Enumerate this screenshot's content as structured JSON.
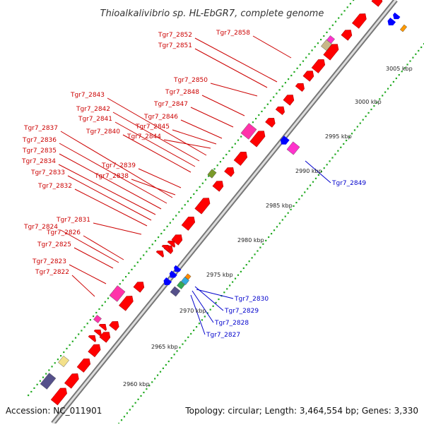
{
  "title": "Thioalkalivibrio sp. HL-EbGR7, complete genome",
  "footer": {
    "accession": "Accession: NC_011901",
    "summary": "Topology: circular; Length: 3,464,554 bp; Genes: 3,330"
  },
  "kbp_ticks": [
    "2960 kbp",
    "2965 kbp",
    "2970 kbp",
    "2975 kbp",
    "2980 kbp",
    "2985 kbp",
    "2990 kbp",
    "2995 kbp",
    "3000 kbp",
    "3005 kbp"
  ],
  "gene_labels_left": [
    "Tgr7_2822",
    "Tgr7_2823",
    "Tgr7_2824",
    "Tgr7_2825",
    "Tgr7_2826",
    "Tgr7_2831",
    "Tgr7_2832",
    "Tgr7_2833",
    "Tgr7_2834",
    "Tgr7_2835",
    "Tgr7_2836",
    "Tgr7_2837",
    "Tgr7_2838",
    "Tgr7_2839",
    "Tgr7_2840",
    "Tgr7_2841",
    "Tgr7_2842",
    "Tgr7_2843",
    "Tgr7_2844",
    "Tgr7_2845",
    "Tgr7_2846",
    "Tgr7_2847",
    "Tgr7_2848",
    "Tgr7_2850",
    "Tgr7_2851",
    "Tgr7_2852",
    "Tgr7_2858"
  ],
  "gene_labels_right": [
    "Tgr7_2827",
    "Tgr7_2828",
    "Tgr7_2829",
    "Tgr7_2830",
    "Tgr7_2849"
  ],
  "colors": {
    "cds_forward": "#ff0000",
    "cds_reverse": "#0000ff",
    "rna_magenta": "#ff33cc",
    "backbone": "#999999",
    "label_forward": "#cc0000",
    "label_reverse": "#0000cc",
    "tick_dots": "#22aa22"
  }
}
